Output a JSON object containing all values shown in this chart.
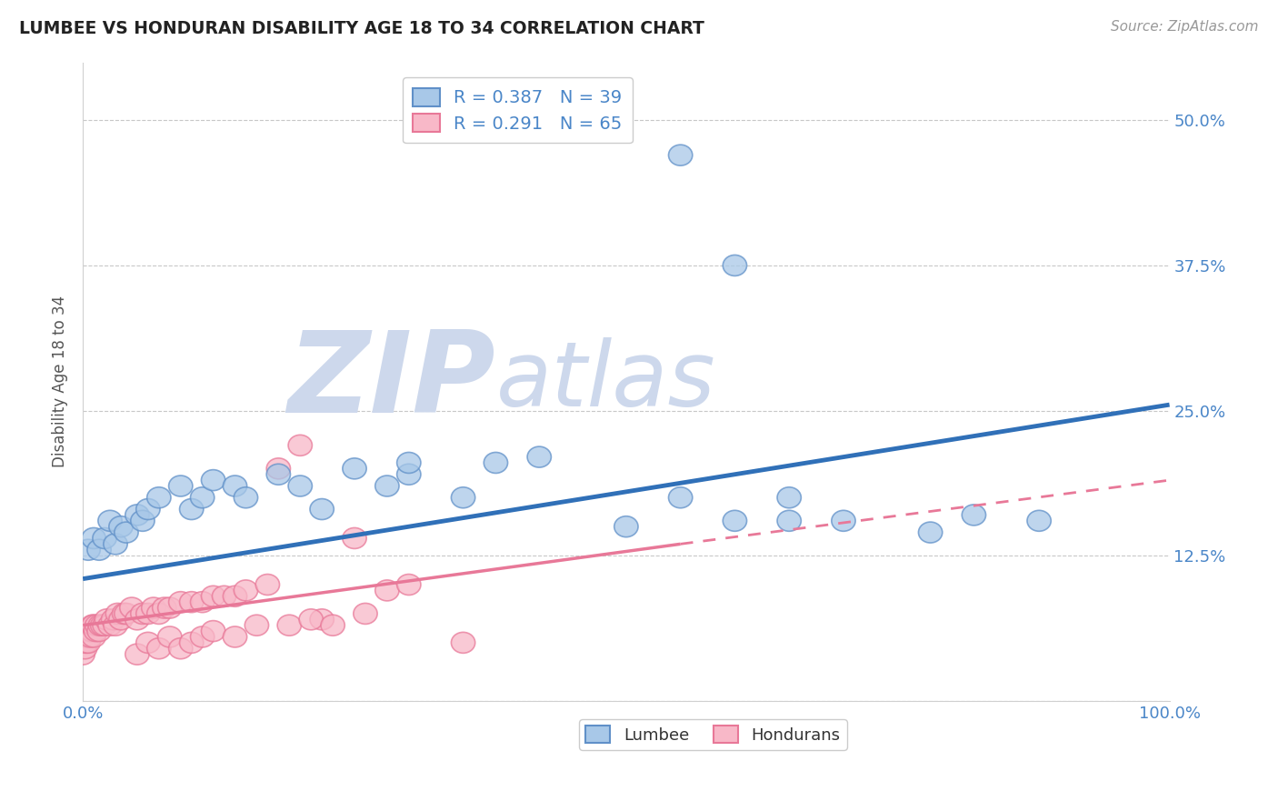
{
  "title": "LUMBEE VS HONDURAN DISABILITY AGE 18 TO 34 CORRELATION CHART",
  "source_text": "Source: ZipAtlas.com",
  "ylabel": "Disability Age 18 to 34",
  "legend_label1": "Lumbee",
  "legend_label2": "Hondurans",
  "R1": 0.387,
  "N1": 39,
  "R2": 0.291,
  "N2": 65,
  "xlim": [
    0.0,
    1.0
  ],
  "ylim": [
    0.0,
    0.55
  ],
  "x_ticks": [
    0.0,
    0.25,
    0.5,
    0.75,
    1.0
  ],
  "x_tick_labels": [
    "0.0%",
    "",
    "",
    "",
    "100.0%"
  ],
  "y_ticks": [
    0.0,
    0.125,
    0.25,
    0.375,
    0.5
  ],
  "y_tick_labels": [
    "",
    "12.5%",
    "25.0%",
    "37.5%",
    "50.0%"
  ],
  "color_lumbee_fill": "#a8c8e8",
  "color_lumbee_edge": "#6090c8",
  "color_lumbee_line": "#3070b8",
  "color_honduran_fill": "#f8b8c8",
  "color_honduran_edge": "#e87898",
  "color_honduran_line": "#e87898",
  "watermark_zip": "ZIP",
  "watermark_atlas": "atlas",
  "watermark_color": "#cdd8ec",
  "background_color": "#ffffff",
  "lumbee_x": [
    0.005,
    0.01,
    0.015,
    0.02,
    0.025,
    0.03,
    0.035,
    0.04,
    0.05,
    0.055,
    0.06,
    0.07,
    0.09,
    0.1,
    0.11,
    0.12,
    0.14,
    0.15,
    0.18,
    0.2,
    0.22,
    0.25,
    0.28,
    0.3,
    0.35,
    0.38,
    0.42,
    0.5,
    0.55,
    0.6,
    0.65,
    0.7,
    0.78,
    0.82,
    0.88,
    0.55,
    0.6,
    0.65,
    0.3
  ],
  "lumbee_y": [
    0.13,
    0.14,
    0.13,
    0.14,
    0.155,
    0.135,
    0.15,
    0.145,
    0.16,
    0.155,
    0.165,
    0.175,
    0.185,
    0.165,
    0.175,
    0.19,
    0.185,
    0.175,
    0.195,
    0.185,
    0.165,
    0.2,
    0.185,
    0.195,
    0.175,
    0.205,
    0.21,
    0.15,
    0.175,
    0.375,
    0.175,
    0.155,
    0.145,
    0.16,
    0.155,
    0.47,
    0.155,
    0.155,
    0.205
  ],
  "honduran_x": [
    0.0,
    0.0,
    0.0,
    0.002,
    0.002,
    0.003,
    0.004,
    0.005,
    0.006,
    0.007,
    0.008,
    0.009,
    0.01,
    0.01,
    0.012,
    0.013,
    0.015,
    0.016,
    0.018,
    0.02,
    0.022,
    0.025,
    0.028,
    0.03,
    0.032,
    0.035,
    0.038,
    0.04,
    0.045,
    0.05,
    0.055,
    0.06,
    0.065,
    0.07,
    0.075,
    0.08,
    0.09,
    0.1,
    0.11,
    0.12,
    0.13,
    0.14,
    0.15,
    0.17,
    0.2,
    0.22,
    0.25,
    0.28,
    0.3,
    0.18,
    0.05,
    0.06,
    0.07,
    0.08,
    0.09,
    0.1,
    0.11,
    0.12,
    0.14,
    0.16,
    0.19,
    0.21,
    0.23,
    0.26,
    0.35
  ],
  "honduran_y": [
    0.04,
    0.05,
    0.055,
    0.045,
    0.06,
    0.05,
    0.055,
    0.05,
    0.06,
    0.055,
    0.06,
    0.065,
    0.055,
    0.065,
    0.06,
    0.065,
    0.06,
    0.065,
    0.065,
    0.065,
    0.07,
    0.065,
    0.07,
    0.065,
    0.075,
    0.07,
    0.075,
    0.075,
    0.08,
    0.07,
    0.075,
    0.075,
    0.08,
    0.075,
    0.08,
    0.08,
    0.085,
    0.085,
    0.085,
    0.09,
    0.09,
    0.09,
    0.095,
    0.1,
    0.22,
    0.07,
    0.14,
    0.095,
    0.1,
    0.2,
    0.04,
    0.05,
    0.045,
    0.055,
    0.045,
    0.05,
    0.055,
    0.06,
    0.055,
    0.065,
    0.065,
    0.07,
    0.065,
    0.075,
    0.05
  ],
  "lumbee_line": [
    0.0,
    1.0,
    0.105,
    0.255
  ],
  "honduran_line_solid": [
    0.0,
    0.55,
    0.065,
    0.135
  ],
  "honduran_line_dashed": [
    0.55,
    1.0,
    0.135,
    0.19
  ]
}
